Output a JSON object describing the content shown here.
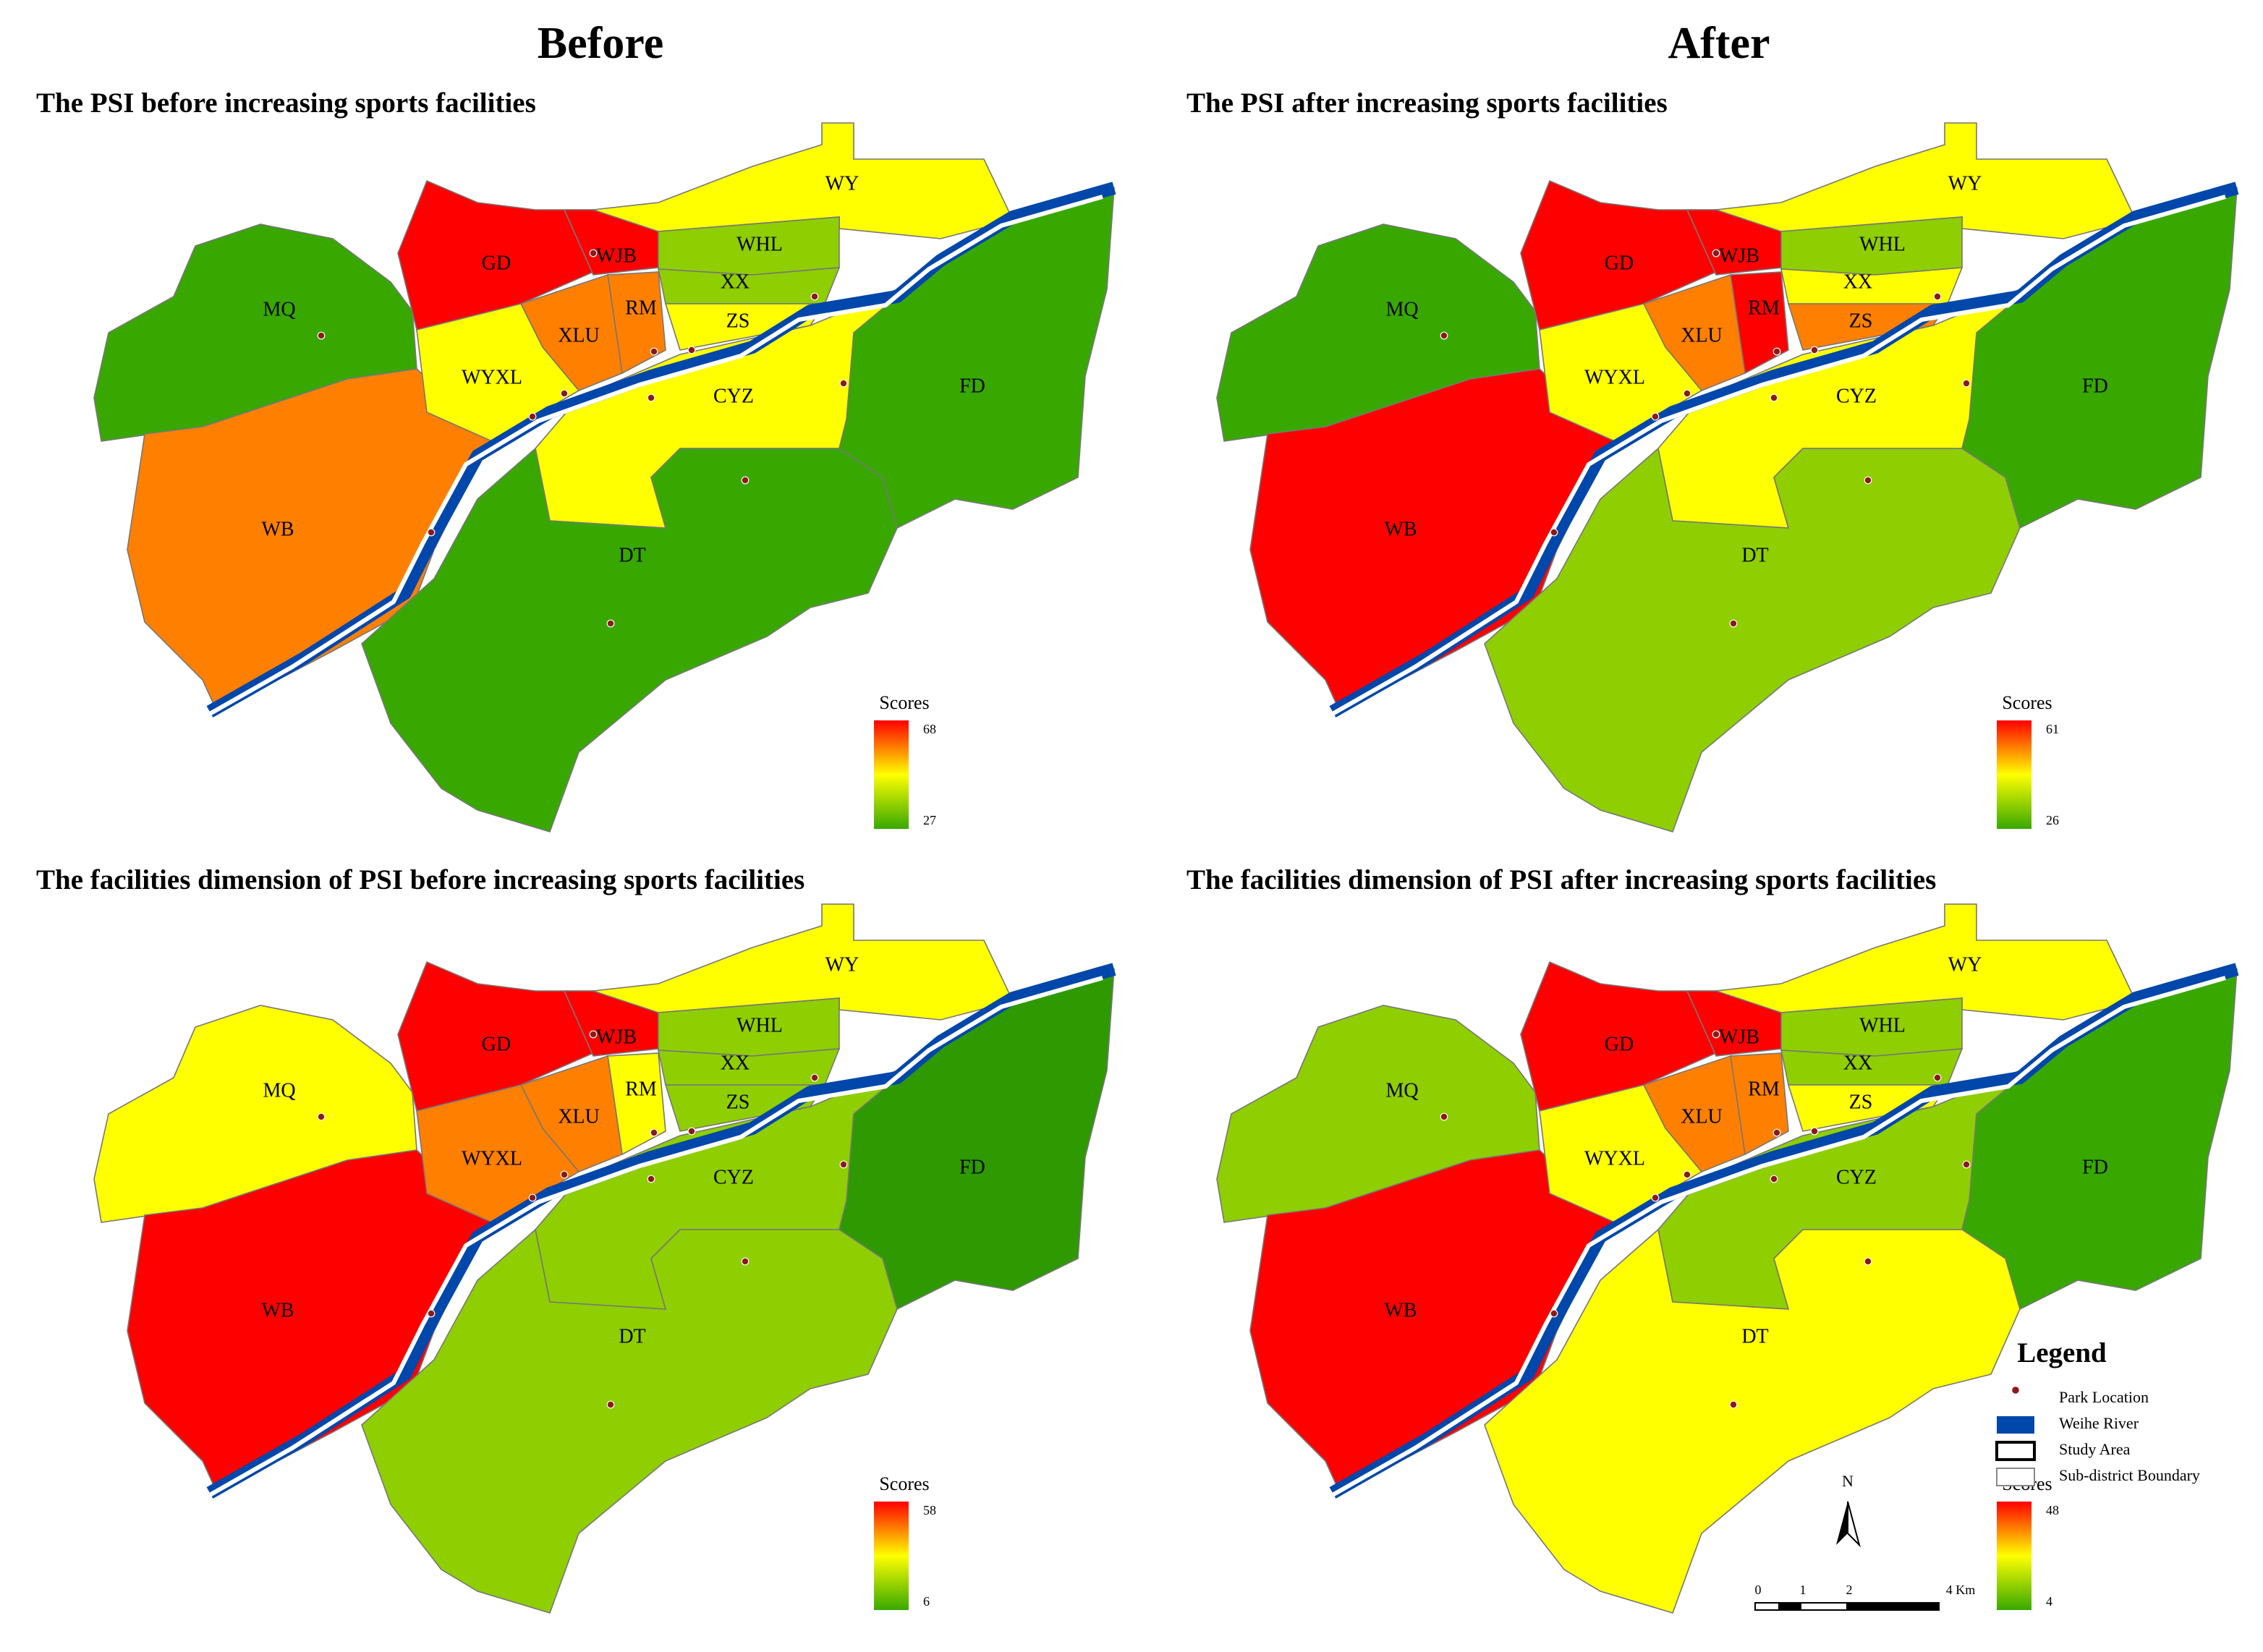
{
  "headers": [
    "Before",
    "After"
  ],
  "panels": [
    {
      "title": "The PSI before increasing sports facilities",
      "scores_label": "Scores",
      "scores_max": "68",
      "scores_min": "27",
      "regions": [
        {
          "label": "MQ",
          "color": "#38a800"
        },
        {
          "label": "WB",
          "color": "#ff8000"
        },
        {
          "label": "GD",
          "color": "#ff0000"
        },
        {
          "label": "WJB",
          "color": "#ff0000"
        },
        {
          "label": "WY",
          "color": "#ffff00"
        },
        {
          "label": "WHL",
          "color": "#8fce00"
        },
        {
          "label": "XX",
          "color": "#8fce00"
        },
        {
          "label": "ZS",
          "color": "#ffff00"
        },
        {
          "label": "RM",
          "color": "#ff8000"
        },
        {
          "label": "XLU",
          "color": "#ff8000"
        },
        {
          "label": "WYXL",
          "color": "#ffff00"
        },
        {
          "label": "CYZ",
          "color": "#ffff00"
        },
        {
          "label": "FD",
          "color": "#38a800"
        },
        {
          "label": "DT",
          "color": "#38a800"
        }
      ]
    },
    {
      "title": "The PSI after increasing sports facilities",
      "scores_label": "Scores",
      "scores_max": "61",
      "scores_min": "26",
      "regions": [
        {
          "label": "MQ",
          "color": "#38a800"
        },
        {
          "label": "WB",
          "color": "#ff0000"
        },
        {
          "label": "GD",
          "color": "#ff0000"
        },
        {
          "label": "WJB",
          "color": "#ff0000"
        },
        {
          "label": "WY",
          "color": "#ffff00"
        },
        {
          "label": "WHL",
          "color": "#8fce00"
        },
        {
          "label": "XX",
          "color": "#ffff00"
        },
        {
          "label": "ZS",
          "color": "#ff8000"
        },
        {
          "label": "RM",
          "color": "#ff0000"
        },
        {
          "label": "XLU",
          "color": "#ff8000"
        },
        {
          "label": "WYXL",
          "color": "#ffff00"
        },
        {
          "label": "CYZ",
          "color": "#ffff00"
        },
        {
          "label": "FD",
          "color": "#38a800"
        },
        {
          "label": "DT",
          "color": "#8fce00"
        }
      ]
    },
    {
      "title": "The facilities dimension of PSI before increasing sports facilities",
      "scores_label": "Scores",
      "scores_max": "58",
      "scores_min": "6",
      "regions": [
        {
          "label": "MQ",
          "color": "#ffff00"
        },
        {
          "label": "WB",
          "color": "#ff0000"
        },
        {
          "label": "GD",
          "color": "#ff0000"
        },
        {
          "label": "WJB",
          "color": "#ff0000"
        },
        {
          "label": "WY",
          "color": "#ffff00"
        },
        {
          "label": "WHL",
          "color": "#8fce00"
        },
        {
          "label": "XX",
          "color": "#8fce00"
        },
        {
          "label": "ZS",
          "color": "#8fce00"
        },
        {
          "label": "RM",
          "color": "#ffff00"
        },
        {
          "label": "XLU",
          "color": "#ff8000"
        },
        {
          "label": "WYXL",
          "color": "#ff8000"
        },
        {
          "label": "CYZ",
          "color": "#8fce00"
        },
        {
          "label": "FD",
          "color": "#2e9900"
        },
        {
          "label": "DT",
          "color": "#8fce00"
        }
      ]
    },
    {
      "title": "The facilities dimension of PSI after increasing sports facilities",
      "scores_label": "Scores",
      "scores_max": "48",
      "scores_min": "4",
      "regions": [
        {
          "label": "MQ",
          "color": "#8fce00"
        },
        {
          "label": "WB",
          "color": "#ff0000"
        },
        {
          "label": "GD",
          "color": "#ff0000"
        },
        {
          "label": "WJB",
          "color": "#ff0000"
        },
        {
          "label": "WY",
          "color": "#ffff00"
        },
        {
          "label": "WHL",
          "color": "#8fce00"
        },
        {
          "label": "XX",
          "color": "#8fce00"
        },
        {
          "label": "ZS",
          "color": "#ffff00"
        },
        {
          "label": "RM",
          "color": "#ff8000"
        },
        {
          "label": "XLU",
          "color": "#ff8000"
        },
        {
          "label": "WYXL",
          "color": "#ffff00"
        },
        {
          "label": "CYZ",
          "color": "#8fce00"
        },
        {
          "label": "FD",
          "color": "#38a800"
        },
        {
          "label": "DT",
          "color": "#ffff00"
        }
      ]
    }
  ],
  "legend": {
    "title": "Legend",
    "items": [
      "Park Location",
      "Weihe River",
      "Study Area",
      "Sub-district Boundary"
    ],
    "north": "N",
    "scale": [
      "0",
      "1",
      "2",
      "4 Km"
    ]
  }
}
